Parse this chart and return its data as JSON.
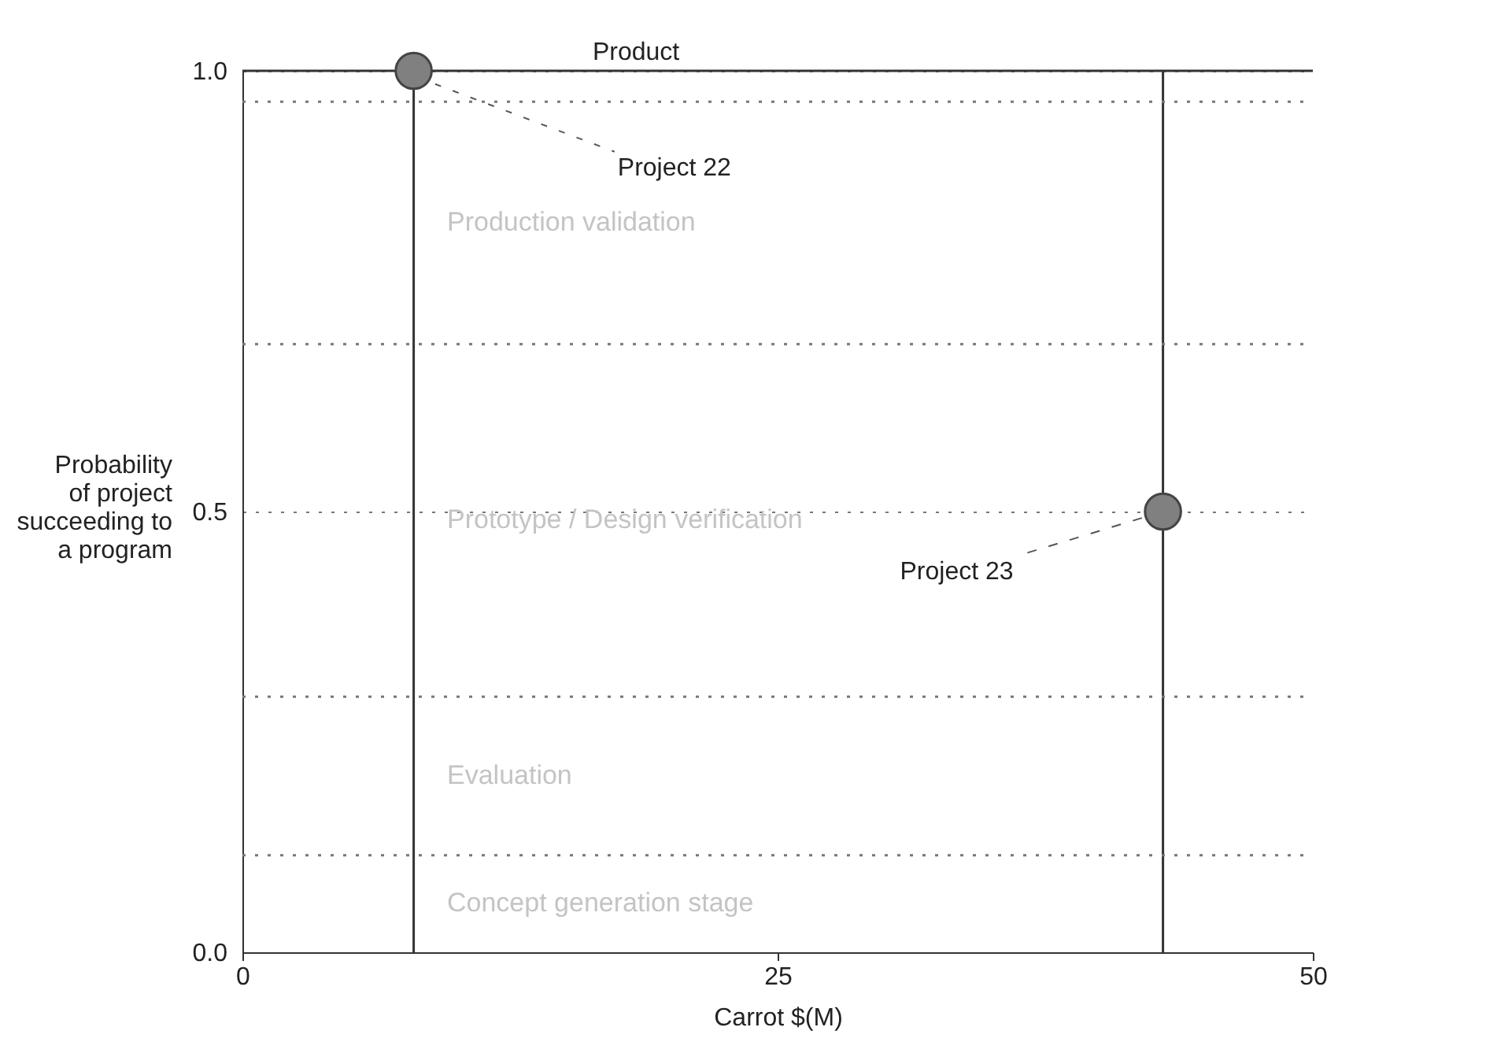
{
  "chart_data": {
    "type": "scatter",
    "xlabel": "Carrot $(M)",
    "ylabel": "Probability\nof project\nsucceeding to\na program",
    "x": [
      8,
      43
    ],
    "series": [
      {
        "color": "#808080",
        "values": [
          1.0,
          0.5
        ]
      }
    ],
    "marker": "circle",
    "xlim": [
      0,
      50
    ],
    "xticks": [
      0,
      25,
      50
    ],
    "ylim": [
      0,
      1
    ],
    "yticks": [
      {
        "value": 0,
        "label": "0.0"
      },
      {
        "value": 0.5,
        "label": "0.5"
      },
      {
        "value": 1,
        "label": "1.0"
      }
    ],
    "grid": "y",
    "ref_lines": [
      {
        "axis": "y",
        "value": 1.0,
        "label": "Product",
        "color": "#333333",
        "line_style": "solid"
      },
      {
        "axis": "x",
        "value": 8,
        "color": "#333333",
        "line_style": "solid"
      },
      {
        "axis": "x",
        "value": 43,
        "color": "#333333",
        "line_style": "solid"
      },
      {
        "axis": "y",
        "value": 0.11,
        "color": "#777777",
        "line_style": "dotted"
      },
      {
        "axis": "y",
        "value": 0.29,
        "color": "#777777",
        "line_style": "dotted"
      },
      {
        "axis": "y",
        "value": 0.69,
        "color": "#777777",
        "line_style": "dotted"
      },
      {
        "axis": "y",
        "value": 0.965,
        "color": "#777777",
        "line_style": "dotted"
      }
    ],
    "annotations": [
      {
        "text": "Project 22",
        "x": 9,
        "y": 0.985
      },
      {
        "text": "Project 23",
        "x": 43,
        "y": 0.5
      },
      "Concept generation stage",
      "Evaluation",
      "Prototype / Design verification",
      "Production validation"
    ]
  }
}
